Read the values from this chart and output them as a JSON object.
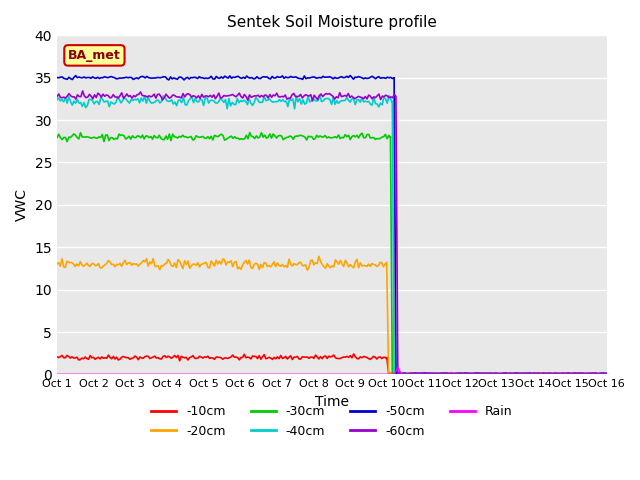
{
  "title": "Sentek Soil Moisture profile",
  "xlabel": "Time",
  "ylabel": "VWC",
  "ylim": [
    0,
    40
  ],
  "xlim": [
    0,
    15
  ],
  "background_color": "#e8e8e8",
  "x_ticks": [
    0,
    1,
    2,
    3,
    4,
    5,
    6,
    7,
    8,
    9,
    10,
    11,
    12,
    13,
    14,
    15
  ],
  "x_tick_labels": [
    "Oct 1",
    "Oct 2",
    "Oct 3",
    "Oct 4",
    "Oct 5",
    "Oct 6",
    "Oct 7",
    "Oct 8",
    "Oct 9",
    "Oct 10",
    "Oct 11",
    "Oct 12",
    "Oct 13",
    "Oct 14",
    "Oct 15",
    "Oct 16"
  ],
  "series": [
    {
      "label": "-10cm",
      "color": "#ff0000",
      "level": 2.0,
      "drop_x": 9.0,
      "drop_y": 2.0,
      "noise": 0.15
    },
    {
      "label": "-20cm",
      "color": "#ffa500",
      "level": 13.0,
      "drop_x": 9.0,
      "drop_y": 12.5,
      "noise": 0.3
    },
    {
      "label": "-30cm",
      "color": "#00cc00",
      "level": 28.0,
      "drop_x": 9.1,
      "drop_y": 28.0,
      "noise": 0.2
    },
    {
      "label": "-40cm",
      "color": "#00cccc",
      "level": 32.2,
      "drop_x": 9.15,
      "drop_y": 32.2,
      "noise": 0.3
    },
    {
      "label": "-50cm",
      "color": "#0000cc",
      "level": 35.0,
      "drop_x": 9.2,
      "drop_y": 35.0,
      "noise": 0.1
    },
    {
      "label": "-60cm",
      "color": "#9900cc",
      "level": 32.8,
      "drop_x": 9.25,
      "drop_y": 32.5,
      "noise": 0.2
    }
  ],
  "rain_label": "Rain",
  "rain_color": "#ff00ff",
  "rain_spike_x": 9.3,
  "rain_spike_height": 0.8,
  "legend_label": "BA_met",
  "legend_bg": "#ffff99",
  "legend_edge": "#cc0000"
}
